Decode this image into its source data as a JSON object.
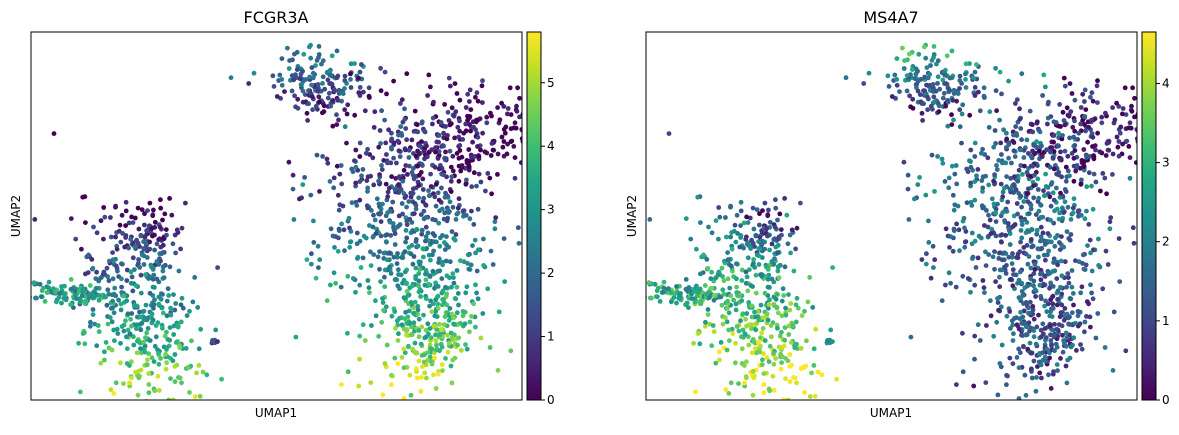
{
  "chart_data": [
    {
      "type": "scatter",
      "title": "FCGR3A",
      "xlabel": "UMAP1",
      "ylabel": "UMAP2",
      "colormap": "viridis",
      "colorbar": {
        "min": 0,
        "max": 5.8,
        "ticks": [
          "0",
          "1",
          "2",
          "3",
          "4",
          "5"
        ]
      },
      "x_ticks_shown": false,
      "y_ticks_shown": false,
      "grid": false
    },
    {
      "type": "scatter",
      "title": "MS4A7",
      "xlabel": "UMAP1",
      "ylabel": "UMAP2",
      "colormap": "viridis",
      "colorbar": {
        "min": 0,
        "max": 4.65,
        "ticks": [
          "0",
          "1",
          "2",
          "3",
          "4"
        ]
      },
      "x_ticks_shown": false,
      "y_ticks_shown": false,
      "grid": false
    }
  ]
}
